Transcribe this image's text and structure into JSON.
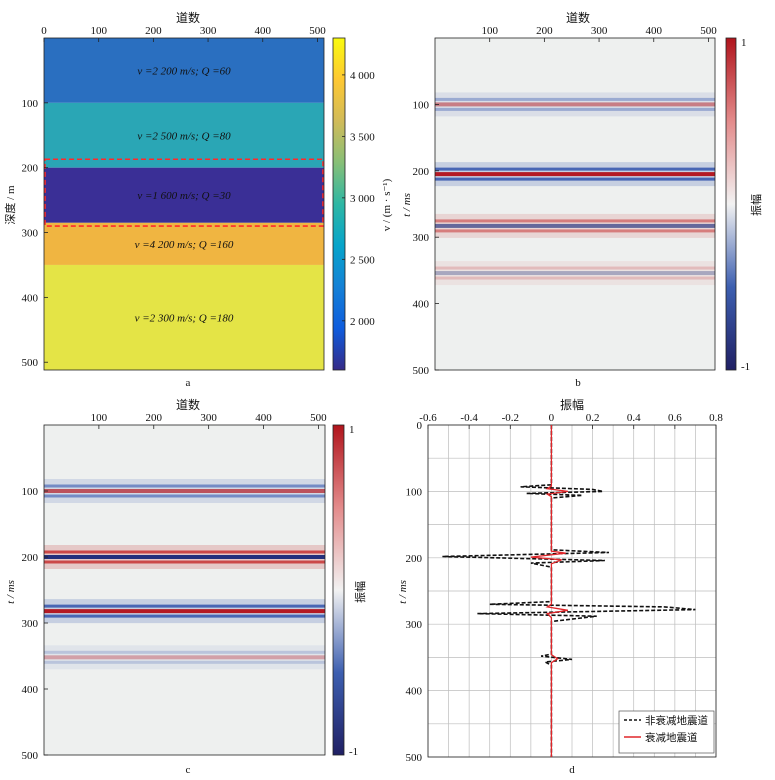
{
  "chart_data": [
    {
      "id": "a",
      "type": "heatmap",
      "panel_label": "a",
      "title": "道数",
      "ylabel": "深度 / m",
      "x_ticks": [
        0,
        100,
        200,
        300,
        400,
        500
      ],
      "y_ticks": [
        100,
        200,
        300,
        400,
        500
      ],
      "xlim": [
        0,
        512
      ],
      "ylim": [
        0,
        512
      ],
      "layers": [
        {
          "top": 0,
          "bottom": 100,
          "v": 2200,
          "q": 60,
          "label": "v =2 200 m/s; Q =60",
          "color": "#2a6fc0",
          "text_color": "#ffffff"
        },
        {
          "top": 100,
          "bottom": 200,
          "v": 2500,
          "q": 80,
          "label": "v =2 500 m/s; Q =80",
          "color": "#2aa6b5",
          "text_color": "#ffffff"
        },
        {
          "top": 200,
          "bottom": 285,
          "v": 1600,
          "q": 30,
          "label": "v =1 600 m/s; Q =30",
          "color": "#3a2f96",
          "text_color": "#ffffff"
        },
        {
          "top": 285,
          "bottom": 350,
          "v": 4200,
          "q": 160,
          "label": "v =4 200 m/s; Q =160",
          "color": "#f0b541",
          "text_color": "#111111"
        },
        {
          "top": 350,
          "bottom": 512,
          "v": 2300,
          "q": 180,
          "label": "v =2 300 m/s; Q =180",
          "color": "#e4e446",
          "text_color": "#111111"
        }
      ],
      "dashed_box": {
        "top": 187,
        "bottom": 290,
        "color": "#ff2a2a"
      },
      "colorbar": {
        "label": "v / (m · s⁻¹)",
        "range": [
          1600,
          4300
        ],
        "ticks": [
          2000,
          2500,
          3000,
          3500,
          4000
        ],
        "tick_labels": [
          "2 000",
          "2 500",
          "3 000",
          "3 500",
          "4 000"
        ],
        "colors": [
          "#352a87",
          "#0f5cdd",
          "#1481d6",
          "#06a4ca",
          "#2eb7a4",
          "#87bf77",
          "#d1bb59",
          "#fec832",
          "#f9fb0e"
        ]
      }
    },
    {
      "id": "b",
      "type": "heatmap",
      "panel_label": "b",
      "title": "道数",
      "ylabel": "t / ms",
      "x_ticks": [
        100,
        200,
        300,
        400,
        500
      ],
      "y_ticks": [
        100,
        200,
        300,
        400,
        500
      ],
      "xlim": [
        0,
        512
      ],
      "ylim": [
        0,
        500
      ],
      "background": "#eef0ef",
      "events": [
        {
          "t": 100,
          "amplitude": 0.35
        },
        {
          "t": 205,
          "amplitude": 0.95
        },
        {
          "t": 283,
          "amplitude": -0.55
        },
        {
          "t": 354,
          "amplitude": -0.15
        }
      ],
      "colorbar": {
        "label": "振幅",
        "range": [
          -1,
          1
        ],
        "ticks": [
          1,
          -1
        ],
        "tick_labels": [
          "1",
          "-1"
        ]
      }
    },
    {
      "id": "c",
      "type": "heatmap",
      "panel_label": "c",
      "title": "道数",
      "ylabel": "t / ms",
      "x_ticks": [
        100,
        200,
        300,
        400,
        500
      ],
      "y_ticks": [
        100,
        200,
        300,
        400,
        500
      ],
      "xlim": [
        0,
        512
      ],
      "ylim": [
        0,
        500
      ],
      "background": "#eef0ef",
      "events": [
        {
          "t": 100,
          "amplitude": 0.6
        },
        {
          "t": 200,
          "amplitude": -0.95
        },
        {
          "t": 282,
          "amplitude": 0.95
        },
        {
          "t": 352,
          "amplitude": 0.15
        }
      ],
      "colorbar": {
        "label": "振幅",
        "range": [
          -1,
          1
        ],
        "ticks": [
          1,
          -1
        ],
        "tick_labels": [
          "1",
          "-1"
        ]
      }
    },
    {
      "id": "d",
      "type": "line",
      "panel_label": "d",
      "title": "振幅",
      "ylabel": "t / ms",
      "x_ticks": [
        -0.6,
        -0.4,
        -0.2,
        0,
        0.2,
        0.4,
        0.6,
        0.8
      ],
      "x_tick_labels": [
        "-0.6",
        "-0.4",
        "-0.2",
        "0",
        "0.2",
        "0.4",
        "0.6",
        "0.8"
      ],
      "y_ticks": [
        0,
        100,
        200,
        300,
        400,
        500
      ],
      "xlim": [
        -0.6,
        0.8
      ],
      "ylim": [
        0,
        500
      ],
      "grid": true,
      "legend_position": "bottom-right",
      "series": [
        {
          "name": "非衰减地震道",
          "style": "dashed",
          "color": "#111111",
          "points": [
            [
              0,
              0
            ],
            [
              0,
              90
            ],
            [
              -0.15,
              93
            ],
            [
              0.2,
              97
            ],
            [
              0.25,
              100
            ],
            [
              -0.12,
              103
            ],
            [
              0.15,
              106
            ],
            [
              0,
              110
            ],
            [
              0,
              188
            ],
            [
              0.28,
              192
            ],
            [
              -0.53,
              198
            ],
            [
              0.26,
              204
            ],
            [
              -0.1,
              208
            ],
            [
              0,
              214
            ],
            [
              0,
              266
            ],
            [
              -0.3,
              270
            ],
            [
              0.55,
              274
            ],
            [
              0.7,
              278
            ],
            [
              -0.36,
              284
            ],
            [
              0.22,
              288
            ],
            [
              0,
              296
            ],
            [
              0,
              345
            ],
            [
              -0.05,
              348
            ],
            [
              0.1,
              353
            ],
            [
              -0.03,
              357
            ],
            [
              0,
              362
            ],
            [
              0,
              500
            ]
          ]
        },
        {
          "name": "衰减地震道",
          "style": "solid",
          "color": "#e0262a",
          "points": [
            [
              0,
              0
            ],
            [
              0,
              92
            ],
            [
              -0.02,
              96
            ],
            [
              0.08,
              100
            ],
            [
              -0.02,
              104
            ],
            [
              0,
              108
            ],
            [
              0,
              190
            ],
            [
              0.07,
              193
            ],
            [
              -0.1,
              199
            ],
            [
              0.05,
              203
            ],
            [
              0,
              209
            ],
            [
              0,
              270
            ],
            [
              -0.02,
              274
            ],
            [
              0.08,
              279
            ],
            [
              -0.02,
              284
            ],
            [
              0,
              290
            ],
            [
              0,
              346
            ],
            [
              0.03,
              352
            ],
            [
              0,
              358
            ],
            [
              0,
              500
            ]
          ]
        }
      ]
    }
  ]
}
